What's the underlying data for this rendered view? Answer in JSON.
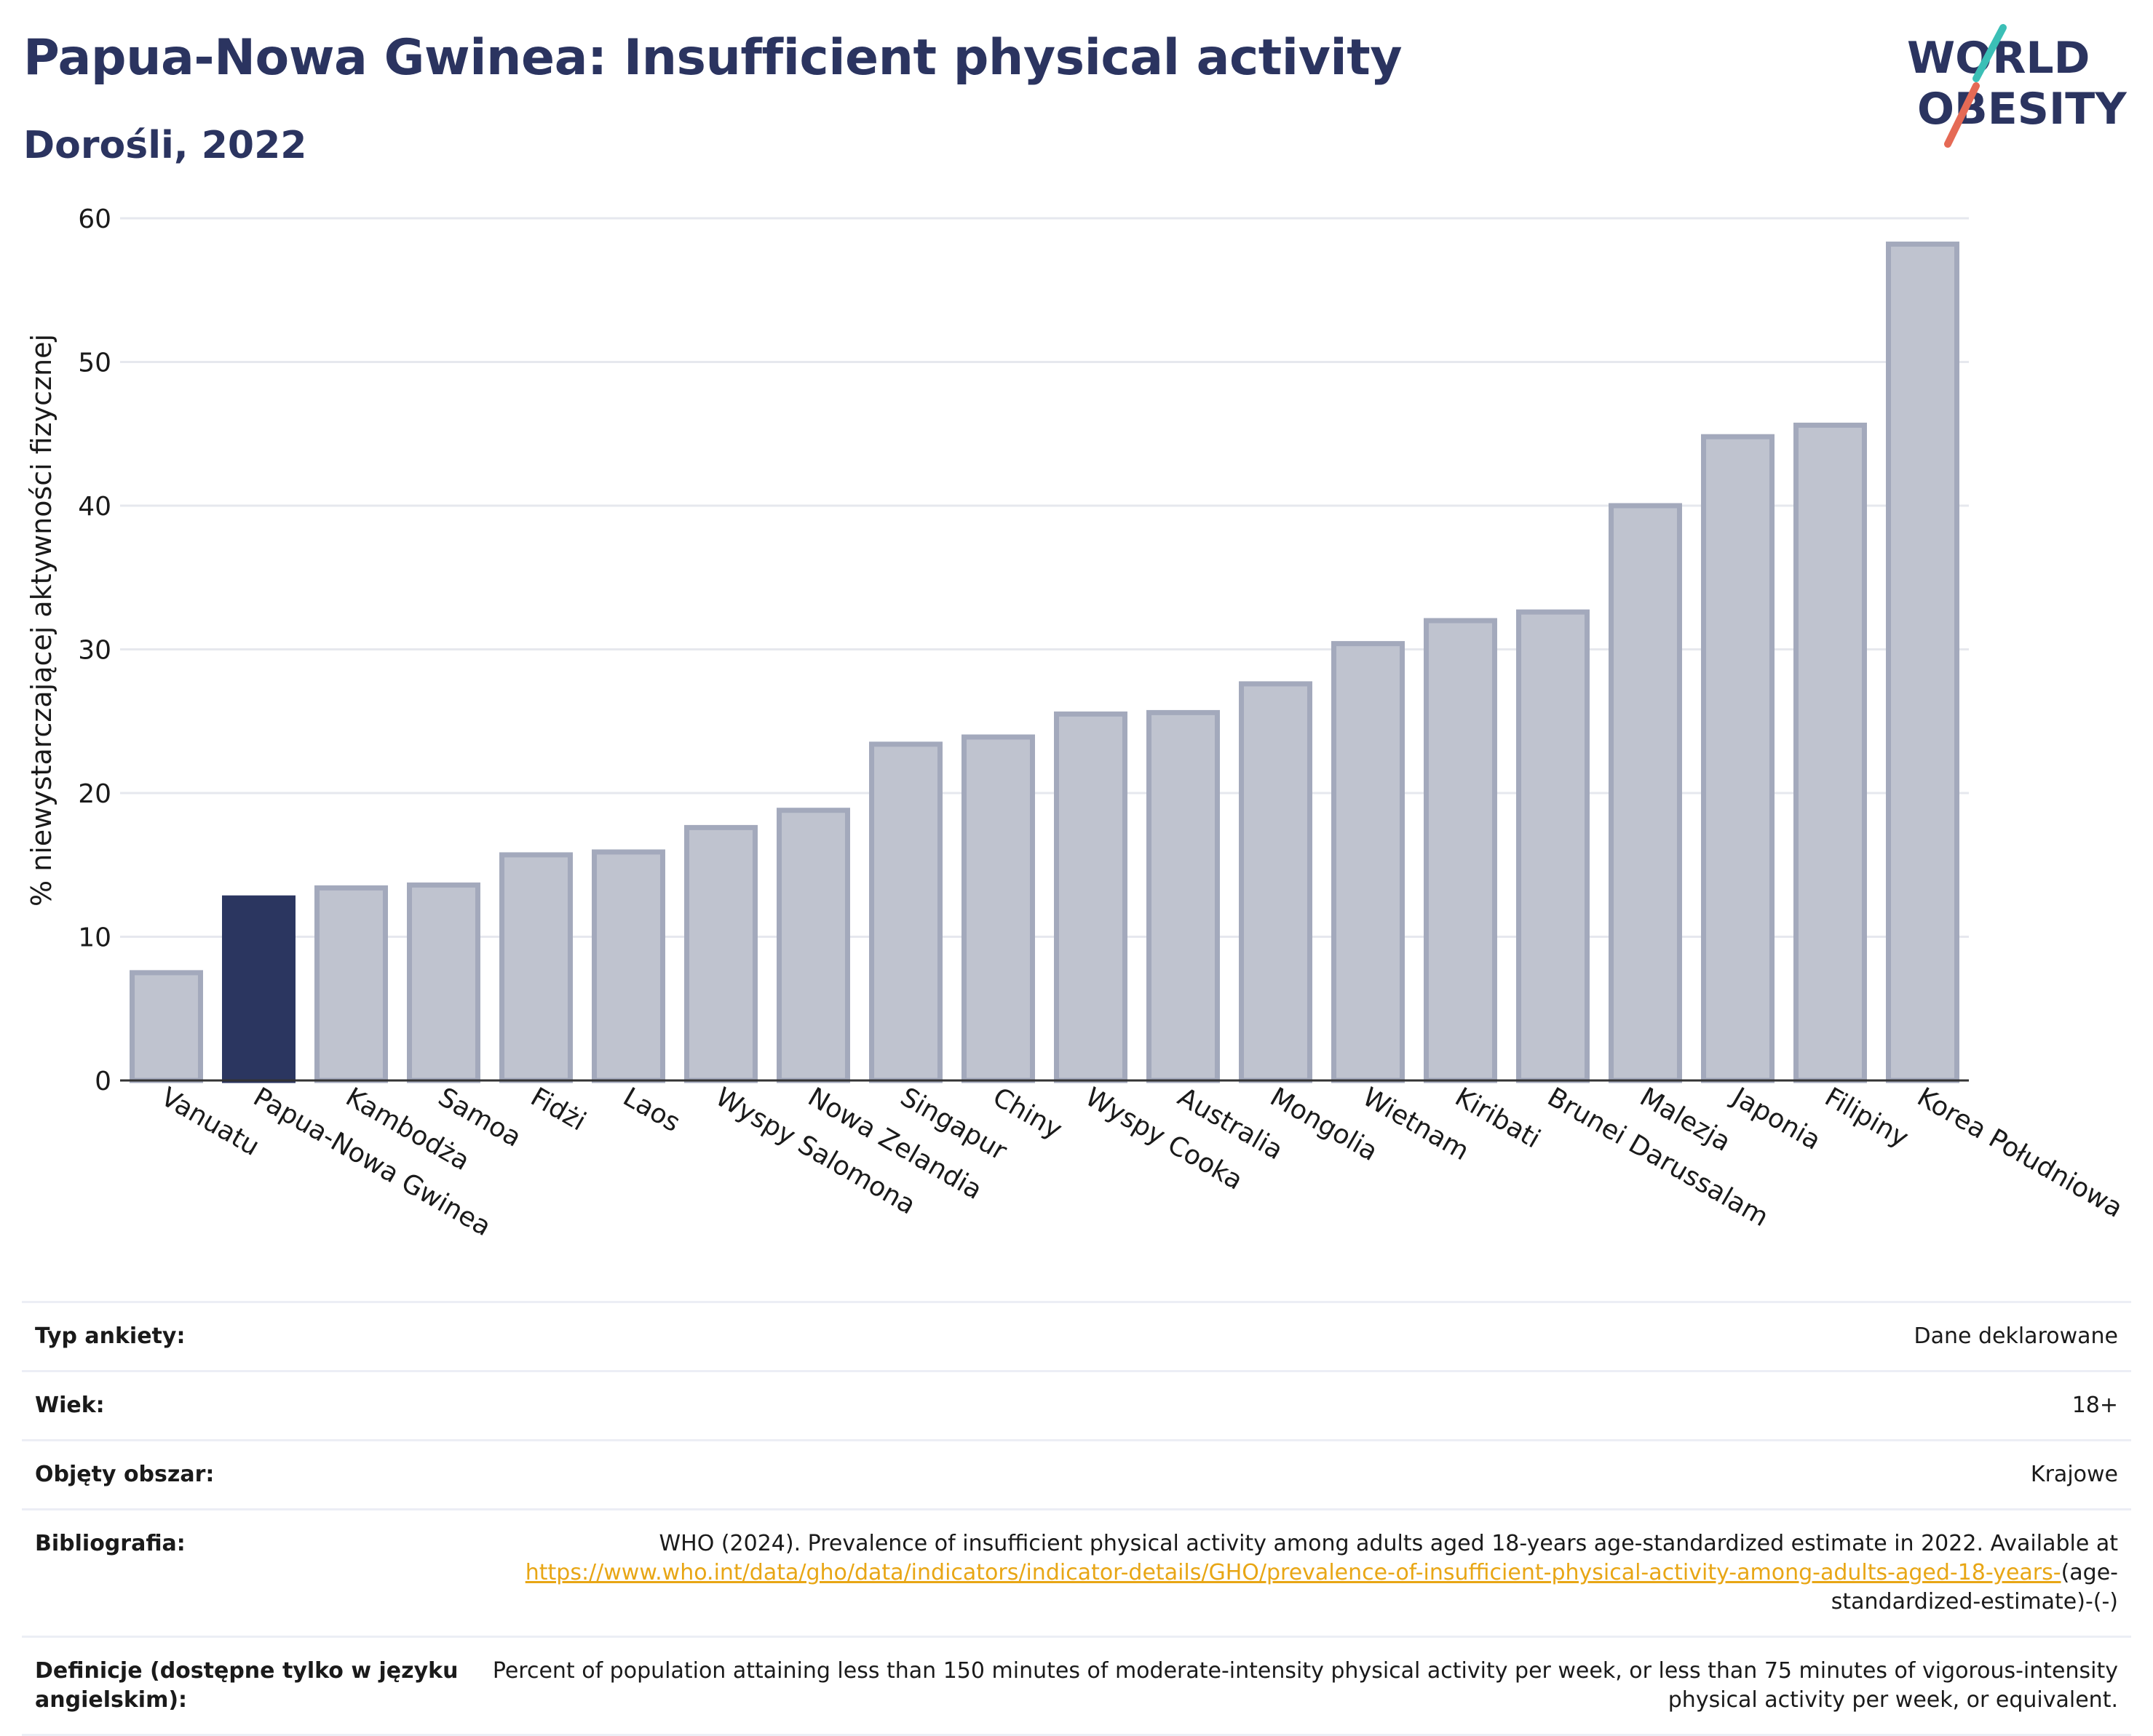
{
  "title": "Papua-Nowa Gwinea: Insufficient physical activity",
  "subtitle": "Dorośli, 2022",
  "logo": {
    "line1": "WORLD",
    "line2": "OBESITY"
  },
  "colors": {
    "highlight": "#2b3660",
    "bar_fill": "#bfc3cf",
    "bar_stroke": "#a3a9bc",
    "title": "#2b3460",
    "link": "#e8a615"
  },
  "chart_data": {
    "type": "bar",
    "title": "Papua-Nowa Gwinea: Insufficient physical activity",
    "subtitle": "Dorośli, 2022",
    "ylabel": "% niewystarczającej aktywności fizycznej",
    "xlabel": "",
    "ylim": [
      0,
      60
    ],
    "yticks": [
      0,
      10,
      20,
      30,
      40,
      50,
      60
    ],
    "grid": true,
    "highlight": "Papua-Nowa Gwinea",
    "categories": [
      "Vanuatu",
      "Papua-Nowa Gwinea",
      "Kambodża",
      "Samoa",
      "Fidżi",
      "Laos",
      "Wyspy Salomona",
      "Nowa Zelandia",
      "Singapur",
      "Chiny",
      "Wyspy Cooka",
      "Australia",
      "Mongolia",
      "Wietnam",
      "Kiribati",
      "Brunei Darussalam",
      "Malezja",
      "Japonia",
      "Filipiny",
      "Korea Południowa"
    ],
    "values": [
      7.5,
      12.7,
      13.4,
      13.6,
      15.7,
      15.9,
      17.6,
      18.8,
      23.4,
      23.9,
      25.5,
      25.6,
      27.6,
      30.4,
      32.0,
      32.6,
      40.0,
      44.8,
      45.6,
      58.2
    ]
  },
  "info": {
    "rows": [
      {
        "label": "Typ ankiety:",
        "value": "Dane deklarowane"
      },
      {
        "label": "Wiek:",
        "value": "18+"
      },
      {
        "label": "Objęty obszar:",
        "value": "Krajowe"
      }
    ],
    "bibliography": {
      "label": "Bibliografia:",
      "text": "WHO (2024). Prevalence of insufficient physical activity among adults aged 18-years age-standardized estimate in 2022. Available at",
      "link": "https://www.who.int/data/gho/data/indicators/indicator-details/GHO/prevalence-of-insufficient-physical-activity-among-adults-aged-18-years-",
      "suffix": "(age-standardized-estimate)-(-)"
    },
    "definition": {
      "label": "Definicje (dostępne tylko w języku angielskim):",
      "value": "Percent of population attaining less than 150 minutes of moderate-intensity physical activity per week, or less than 75 minutes of vigorous-intensity physical activity per week, or equivalent."
    }
  }
}
